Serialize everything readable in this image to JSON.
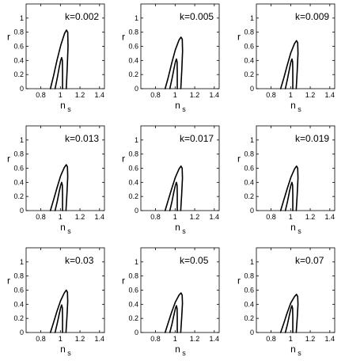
{
  "figure": {
    "panel_count": 9,
    "layout": "3x3"
  },
  "chart_data": [
    {
      "type": "contour",
      "annotation": "k=0.002",
      "xlabel": "n",
      "xlabel_subscript": "s",
      "ylabel": "r",
      "xlim": [
        0.65,
        1.45
      ],
      "ylim": [
        0,
        1.2
      ],
      "xticks": [
        "0.8",
        "1",
        "1.2",
        "1.4"
      ],
      "yticks": [
        "0",
        "0.2",
        "0.4",
        "0.6",
        "0.8",
        "1"
      ],
      "contours": [
        {
          "level": "inner",
          "points": [
            [
              0.946,
              0
            ],
            [
              0.968,
              0.15
            ],
            [
              0.988,
              0.3
            ],
            [
              1.003,
              0.4
            ],
            [
              1.013,
              0.44
            ],
            [
              1.02,
              0.4
            ],
            [
              1.022,
              0.25
            ],
            [
              1.022,
              0
            ]
          ]
        },
        {
          "level": "outer",
          "points": [
            [
              0.898,
              0
            ],
            [
              0.93,
              0.18
            ],
            [
              0.965,
              0.4
            ],
            [
              1.005,
              0.62
            ],
            [
              1.042,
              0.78
            ],
            [
              1.062,
              0.83
            ],
            [
              1.075,
              0.8
            ],
            [
              1.078,
              0.6
            ],
            [
              1.07,
              0.3
            ],
            [
              1.06,
              0
            ]
          ]
        }
      ]
    },
    {
      "type": "contour",
      "annotation": "k=0.005",
      "xlabel": "n",
      "xlabel_subscript": "s",
      "ylabel": "r",
      "xlim": [
        0.65,
        1.45
      ],
      "ylim": [
        0,
        1.2
      ],
      "xticks": [
        "0.8",
        "1",
        "1.2",
        "1.4"
      ],
      "yticks": [
        "0",
        "0.2",
        "0.4",
        "0.6",
        "0.8",
        "1"
      ],
      "contours": [
        {
          "level": "inner",
          "points": [
            [
              0.946,
              0
            ],
            [
              0.968,
              0.14
            ],
            [
              0.988,
              0.28
            ],
            [
              1.003,
              0.38
            ],
            [
              1.013,
              0.42
            ],
            [
              1.02,
              0.38
            ],
            [
              1.022,
              0.24
            ],
            [
              1.022,
              0
            ]
          ]
        },
        {
          "level": "outer",
          "points": [
            [
              0.898,
              0
            ],
            [
              0.93,
              0.16
            ],
            [
              0.965,
              0.36
            ],
            [
              1.002,
              0.55
            ],
            [
              1.04,
              0.69
            ],
            [
              1.06,
              0.73
            ],
            [
              1.073,
              0.7
            ],
            [
              1.076,
              0.53
            ],
            [
              1.068,
              0.26
            ],
            [
              1.058,
              0
            ]
          ]
        }
      ]
    },
    {
      "type": "contour",
      "annotation": "k=0.009",
      "xlabel": "n",
      "xlabel_subscript": "s",
      "ylabel": "r",
      "xlim": [
        0.65,
        1.45
      ],
      "ylim": [
        0,
        1.2
      ],
      "xticks": [
        "0.8",
        "1",
        "1.2",
        "1.4"
      ],
      "yticks": [
        "0",
        "0.2",
        "0.4",
        "0.6",
        "0.8",
        "1"
      ],
      "contours": [
        {
          "level": "inner",
          "points": [
            [
              0.946,
              0
            ],
            [
              0.968,
              0.14
            ],
            [
              0.988,
              0.28
            ],
            [
              1.003,
              0.38
            ],
            [
              1.013,
              0.42
            ],
            [
              1.02,
              0.38
            ],
            [
              1.022,
              0.24
            ],
            [
              1.022,
              0
            ]
          ]
        },
        {
          "level": "outer",
          "points": [
            [
              0.898,
              0
            ],
            [
              0.93,
              0.15
            ],
            [
              0.965,
              0.33
            ],
            [
              1.002,
              0.51
            ],
            [
              1.04,
              0.64
            ],
            [
              1.06,
              0.68
            ],
            [
              1.072,
              0.65
            ],
            [
              1.075,
              0.5
            ],
            [
              1.067,
              0.25
            ],
            [
              1.057,
              0
            ]
          ]
        }
      ]
    },
    {
      "type": "contour",
      "annotation": "k=0.013",
      "xlabel": "n",
      "xlabel_subscript": "s",
      "ylabel": "r",
      "xlim": [
        0.65,
        1.45
      ],
      "ylim": [
        0,
        1.2
      ],
      "xticks": [
        "0.8",
        "1",
        "1.2",
        "1.4"
      ],
      "yticks": [
        "0",
        "0.2",
        "0.4",
        "0.6",
        "0.8",
        "1"
      ],
      "contours": [
        {
          "level": "inner",
          "points": [
            [
              0.946,
              0
            ],
            [
              0.968,
              0.13
            ],
            [
              0.988,
              0.27
            ],
            [
              1.003,
              0.36
            ],
            [
              1.013,
              0.4
            ],
            [
              1.02,
              0.36
            ],
            [
              1.022,
              0.23
            ],
            [
              1.022,
              0
            ]
          ]
        },
        {
          "level": "outer",
          "points": [
            [
              0.898,
              0
            ],
            [
              0.93,
              0.15
            ],
            [
              0.965,
              0.32
            ],
            [
              1.002,
              0.49
            ],
            [
              1.04,
              0.61
            ],
            [
              1.06,
              0.65
            ],
            [
              1.072,
              0.62
            ],
            [
              1.075,
              0.48
            ],
            [
              1.067,
              0.24
            ],
            [
              1.057,
              0
            ]
          ]
        }
      ]
    },
    {
      "type": "contour",
      "annotation": "k=0.017",
      "xlabel": "n",
      "xlabel_subscript": "s",
      "ylabel": "r",
      "xlim": [
        0.65,
        1.45
      ],
      "ylim": [
        0,
        1.2
      ],
      "xticks": [
        "0.8",
        "1",
        "1.2",
        "1.4"
      ],
      "yticks": [
        "0",
        "0.2",
        "0.4",
        "0.6",
        "0.8",
        "1"
      ],
      "contours": [
        {
          "level": "inner",
          "points": [
            [
              0.946,
              0
            ],
            [
              0.968,
              0.13
            ],
            [
              0.988,
              0.27
            ],
            [
              1.003,
              0.36
            ],
            [
              1.013,
              0.4
            ],
            [
              1.02,
              0.36
            ],
            [
              1.022,
              0.23
            ],
            [
              1.022,
              0
            ]
          ]
        },
        {
          "level": "outer",
          "points": [
            [
              0.898,
              0
            ],
            [
              0.93,
              0.15
            ],
            [
              0.965,
              0.31
            ],
            [
              1.002,
              0.47
            ],
            [
              1.04,
              0.59
            ],
            [
              1.06,
              0.63
            ],
            [
              1.072,
              0.6
            ],
            [
              1.075,
              0.46
            ],
            [
              1.067,
              0.23
            ],
            [
              1.057,
              0
            ]
          ]
        }
      ]
    },
    {
      "type": "contour",
      "annotation": "k=0.019",
      "xlabel": "n",
      "xlabel_subscript": "s",
      "ylabel": "r",
      "xlim": [
        0.65,
        1.45
      ],
      "ylim": [
        0,
        1.2
      ],
      "xticks": [
        "0.8",
        "1",
        "1.2",
        "1.4"
      ],
      "yticks": [
        "0",
        "0.2",
        "0.4",
        "0.6",
        "0.8",
        "1"
      ],
      "contours": [
        {
          "level": "inner",
          "points": [
            [
              0.946,
              0
            ],
            [
              0.968,
              0.13
            ],
            [
              0.988,
              0.27
            ],
            [
              1.003,
              0.36
            ],
            [
              1.013,
              0.4
            ],
            [
              1.02,
              0.36
            ],
            [
              1.022,
              0.23
            ],
            [
              1.022,
              0
            ]
          ]
        },
        {
          "level": "outer",
          "points": [
            [
              0.898,
              0
            ],
            [
              0.93,
              0.15
            ],
            [
              0.965,
              0.31
            ],
            [
              1.002,
              0.47
            ],
            [
              1.04,
              0.59
            ],
            [
              1.06,
              0.63
            ],
            [
              1.072,
              0.6
            ],
            [
              1.075,
              0.46
            ],
            [
              1.067,
              0.23
            ],
            [
              1.057,
              0
            ]
          ]
        }
      ]
    },
    {
      "type": "contour",
      "annotation": "k=0.03",
      "xlabel": "n",
      "xlabel_subscript": "s",
      "ylabel": "r",
      "xlim": [
        0.65,
        1.45
      ],
      "ylim": [
        0,
        1.2
      ],
      "xticks": [
        "0.8",
        "1",
        "1.2",
        "1.4"
      ],
      "yticks": [
        "0",
        "0.2",
        "0.4",
        "0.6",
        "0.8",
        "1"
      ],
      "contours": [
        {
          "level": "inner",
          "points": [
            [
              0.946,
              0
            ],
            [
              0.968,
              0.13
            ],
            [
              0.988,
              0.26
            ],
            [
              1.003,
              0.35
            ],
            [
              1.013,
              0.39
            ],
            [
              1.02,
              0.35
            ],
            [
              1.022,
              0.22
            ],
            [
              1.022,
              0
            ]
          ]
        },
        {
          "level": "outer",
          "points": [
            [
              0.898,
              0
            ],
            [
              0.93,
              0.14
            ],
            [
              0.965,
              0.3
            ],
            [
              1.002,
              0.45
            ],
            [
              1.04,
              0.56
            ],
            [
              1.06,
              0.6
            ],
            [
              1.072,
              0.57
            ],
            [
              1.075,
              0.44
            ],
            [
              1.067,
              0.22
            ],
            [
              1.057,
              0
            ]
          ]
        }
      ]
    },
    {
      "type": "contour",
      "annotation": "k=0.05",
      "xlabel": "n",
      "xlabel_subscript": "s",
      "ylabel": "r",
      "xlim": [
        0.65,
        1.45
      ],
      "ylim": [
        0,
        1.2
      ],
      "xticks": [
        "0.8",
        "1",
        "1.2",
        "1.4"
      ],
      "yticks": [
        "0",
        "0.2",
        "0.4",
        "0.6",
        "0.8",
        "1"
      ],
      "contours": [
        {
          "level": "inner",
          "points": [
            [
              0.946,
              0
            ],
            [
              0.968,
              0.12
            ],
            [
              0.988,
              0.25
            ],
            [
              1.003,
              0.34
            ],
            [
              1.013,
              0.38
            ],
            [
              1.02,
              0.34
            ],
            [
              1.022,
              0.21
            ],
            [
              1.022,
              0
            ]
          ]
        },
        {
          "level": "outer",
          "points": [
            [
              0.898,
              0
            ],
            [
              0.93,
              0.14
            ],
            [
              0.965,
              0.29
            ],
            [
              1.002,
              0.43
            ],
            [
              1.04,
              0.53
            ],
            [
              1.06,
              0.56
            ],
            [
              1.072,
              0.53
            ],
            [
              1.075,
              0.41
            ],
            [
              1.067,
              0.21
            ],
            [
              1.057,
              0
            ]
          ]
        }
      ]
    },
    {
      "type": "contour",
      "annotation": "k=0.07",
      "xlabel": "n",
      "xlabel_subscript": "s",
      "ylabel": "r",
      "xlim": [
        0.65,
        1.45
      ],
      "ylim": [
        0,
        1.2
      ],
      "xticks": [
        "0.8",
        "1",
        "1.2",
        "1.4"
      ],
      "yticks": [
        "0",
        "0.2",
        "0.4",
        "0.6",
        "0.8",
        "1"
      ],
      "contours": [
        {
          "level": "inner",
          "points": [
            [
              0.946,
              0
            ],
            [
              0.968,
              0.12
            ],
            [
              0.988,
              0.25
            ],
            [
              1.003,
              0.34
            ],
            [
              1.013,
              0.38
            ],
            [
              1.02,
              0.34
            ],
            [
              1.022,
              0.21
            ],
            [
              1.022,
              0
            ]
          ]
        },
        {
          "level": "outer",
          "points": [
            [
              0.898,
              0
            ],
            [
              0.93,
              0.13
            ],
            [
              0.965,
              0.28
            ],
            [
              1.002,
              0.42
            ],
            [
              1.04,
              0.51
            ],
            [
              1.06,
              0.54
            ],
            [
              1.072,
              0.51
            ],
            [
              1.075,
              0.4
            ],
            [
              1.067,
              0.2
            ],
            [
              1.057,
              0
            ]
          ]
        }
      ]
    }
  ]
}
